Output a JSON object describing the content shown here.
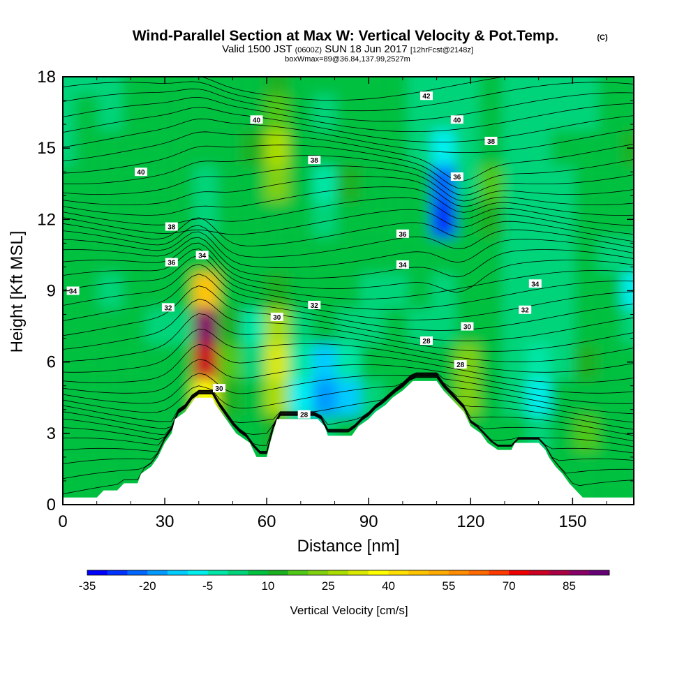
{
  "header": {
    "title": "Wind-Parallel Section at Max W: Vertical Velocity & Pot.Temp.",
    "title_mark": "(C)",
    "valid_prefix": "Valid 1500 JST",
    "valid_utc": "(0600Z)",
    "valid_date": "SUN 18 Jun 2017",
    "forecast": "[12hrFcst@2148z]",
    "boxmax": "boxWmax=89@36.84,137.99,2527m"
  },
  "chart_data": {
    "type": "heatmap",
    "xlabel": "Distance [nm]",
    "ylabel": "Height [Kft MSL]",
    "xlim": [
      0,
      168
    ],
    "ylim": [
      0,
      18
    ],
    "xticks": [
      0,
      30,
      60,
      90,
      120,
      150
    ],
    "yticks": [
      0,
      3,
      6,
      9,
      12,
      15,
      18
    ],
    "colorbar": {
      "title": "Vertical Velocity [cm/s]",
      "tick_labels": [
        "-35",
        "-20",
        "-5",
        "10",
        "25",
        "40",
        "55",
        "70",
        "85"
      ],
      "tick_values": [
        -35,
        -20,
        -5,
        10,
        25,
        40,
        55,
        70,
        85
      ],
      "range": [
        -35,
        95
      ],
      "colors": [
        "#0000ff",
        "#0033ff",
        "#0066ff",
        "#0099ff",
        "#00ccff",
        "#00eeee",
        "#00e6a6",
        "#00d47a",
        "#00c040",
        "#1ab020",
        "#50c818",
        "#80d010",
        "#aadd00",
        "#d8e800",
        "#ffff00",
        "#ffe000",
        "#ffc400",
        "#ffaa00",
        "#ff8c00",
        "#ff6a00",
        "#ff3a00",
        "#ee0000",
        "#cc0022",
        "#aa0044",
        "#880066",
        "#660077"
      ]
    },
    "terrain_kft": [
      [
        0,
        0.3
      ],
      [
        10,
        0.3
      ],
      [
        12,
        0.6
      ],
      [
        16,
        0.6
      ],
      [
        18,
        0.9
      ],
      [
        22,
        0.9
      ],
      [
        23,
        1.3
      ],
      [
        26,
        1.6
      ],
      [
        28,
        2.0
      ],
      [
        30,
        2.6
      ],
      [
        32,
        3.0
      ],
      [
        33,
        3.6
      ],
      [
        36,
        3.9
      ],
      [
        39,
        4.5
      ],
      [
        44,
        4.5
      ],
      [
        45,
        4.2
      ],
      [
        48,
        3.6
      ],
      [
        51,
        3.0
      ],
      [
        55,
        2.6
      ],
      [
        57,
        2.0
      ],
      [
        60,
        2.0
      ],
      [
        61,
        2.6
      ],
      [
        63,
        3.6
      ],
      [
        75,
        3.6
      ],
      [
        77,
        3.3
      ],
      [
        78,
        2.9
      ],
      [
        85,
        2.9
      ],
      [
        87,
        3.3
      ],
      [
        90,
        3.6
      ],
      [
        92,
        3.9
      ],
      [
        95,
        4.2
      ],
      [
        97,
        4.5
      ],
      [
        100,
        4.8
      ],
      [
        103,
        5.2
      ],
      [
        110,
        5.2
      ],
      [
        112,
        4.8
      ],
      [
        114,
        4.5
      ],
      [
        116,
        4.2
      ],
      [
        118,
        3.9
      ],
      [
        120,
        3.3
      ],
      [
        123,
        3.0
      ],
      [
        125,
        2.6
      ],
      [
        128,
        2.3
      ],
      [
        132,
        2.3
      ],
      [
        133,
        2.6
      ],
      [
        140,
        2.6
      ],
      [
        142,
        2.3
      ],
      [
        143,
        2.0
      ],
      [
        145,
        1.6
      ],
      [
        147,
        1.3
      ],
      [
        149,
        0.9
      ],
      [
        151,
        0.6
      ],
      [
        153,
        0.3
      ],
      [
        168,
        0.3
      ]
    ],
    "contour_labels": [
      {
        "text": "42",
        "x": 107,
        "y": 17.2
      },
      {
        "text": "40",
        "x": 57,
        "y": 16.2
      },
      {
        "text": "40",
        "x": 116,
        "y": 16.2
      },
      {
        "text": "38",
        "x": 126,
        "y": 15.3
      },
      {
        "text": "40",
        "x": 23,
        "y": 14.0
      },
      {
        "text": "38",
        "x": 74,
        "y": 14.5
      },
      {
        "text": "36",
        "x": 116,
        "y": 13.8
      },
      {
        "text": "38",
        "x": 32,
        "y": 11.7
      },
      {
        "text": "36",
        "x": 100,
        "y": 11.4
      },
      {
        "text": "34",
        "x": 41,
        "y": 10.5
      },
      {
        "text": "36",
        "x": 32,
        "y": 10.2
      },
      {
        "text": "34",
        "x": 100,
        "y": 10.1
      },
      {
        "text": "34",
        "x": 139,
        "y": 9.3
      },
      {
        "text": "34",
        "x": 3,
        "y": 9.0
      },
      {
        "text": "32",
        "x": 31,
        "y": 8.3
      },
      {
        "text": "32",
        "x": 74,
        "y": 8.4
      },
      {
        "text": "32",
        "x": 136,
        "y": 8.2
      },
      {
        "text": "30",
        "x": 63,
        "y": 7.9
      },
      {
        "text": "30",
        "x": 119,
        "y": 7.5
      },
      {
        "text": "28",
        "x": 107,
        "y": 6.9
      },
      {
        "text": "28",
        "x": 117,
        "y": 5.9
      },
      {
        "text": "30",
        "x": 46,
        "y": 4.9
      },
      {
        "text": "28",
        "x": 71,
        "y": 3.8
      }
    ],
    "w_field_cm_s": {
      "x": [
        0,
        7,
        14,
        21,
        28,
        35,
        42,
        49,
        56,
        63,
        70,
        77,
        84,
        91,
        98,
        105,
        112,
        119,
        126,
        133,
        140,
        147,
        154,
        161,
        168
      ],
      "y": [
        0,
        1.5,
        3,
        4.5,
        6,
        7.5,
        9,
        10.5,
        12,
        13.5,
        15,
        16.5,
        18
      ],
      "values": [
        [
          8,
          8,
          8,
          8,
          6,
          5,
          5,
          6,
          8,
          8,
          8,
          6,
          5,
          5,
          6,
          8,
          8,
          8,
          8,
          8,
          8,
          5,
          6,
          8,
          8
        ],
        [
          8,
          8,
          6,
          6,
          6,
          5,
          5,
          6,
          8,
          8,
          8,
          6,
          5,
          5,
          6,
          8,
          8,
          8,
          8,
          8,
          8,
          5,
          6,
          8,
          8
        ],
        [
          6,
          6,
          6,
          6,
          6,
          5,
          5,
          6,
          8,
          12,
          8,
          4,
          5,
          5,
          6,
          8,
          8,
          8,
          8,
          8,
          0,
          5,
          15,
          6,
          6
        ],
        [
          6,
          6,
          6,
          6,
          6,
          5,
          40,
          12,
          6,
          28,
          -10,
          -20,
          -12,
          0,
          6,
          8,
          8,
          22,
          6,
          4,
          -8,
          5,
          6,
          6,
          6
        ],
        [
          6,
          6,
          6,
          6,
          6,
          5,
          75,
          15,
          0,
          30,
          -5,
          -15,
          -5,
          5,
          6,
          8,
          6,
          20,
          6,
          4,
          -5,
          0,
          10,
          6,
          6
        ],
        [
          6,
          6,
          6,
          6,
          0,
          0,
          85,
          12,
          -2,
          25,
          0,
          6,
          4,
          4,
          6,
          4,
          4,
          6,
          6,
          4,
          0,
          4,
          6,
          6,
          2
        ],
        [
          6,
          6,
          4,
          6,
          5,
          6,
          45,
          6,
          6,
          10,
          6,
          6,
          6,
          0,
          4,
          6,
          4,
          6,
          6,
          4,
          4,
          4,
          6,
          6,
          -10
        ],
        [
          6,
          6,
          6,
          6,
          6,
          8,
          6,
          6,
          6,
          8,
          6,
          6,
          6,
          6,
          6,
          6,
          6,
          6,
          6,
          4,
          2,
          4,
          6,
          4,
          4
        ],
        [
          6,
          6,
          6,
          6,
          6,
          6,
          0,
          6,
          6,
          8,
          6,
          0,
          6,
          6,
          6,
          6,
          -30,
          6,
          10,
          4,
          2,
          4,
          6,
          6,
          6
        ],
        [
          6,
          6,
          6,
          6,
          6,
          8,
          2,
          6,
          8,
          20,
          6,
          -5,
          12,
          6,
          6,
          6,
          -25,
          4,
          15,
          4,
          2,
          4,
          6,
          6,
          6
        ],
        [
          4,
          8,
          6,
          6,
          8,
          8,
          8,
          8,
          10,
          25,
          6,
          6,
          6,
          6,
          6,
          4,
          -10,
          4,
          6,
          4,
          4,
          6,
          6,
          6,
          10
        ],
        [
          2,
          6,
          2,
          6,
          6,
          6,
          8,
          8,
          8,
          15,
          6,
          4,
          6,
          6,
          6,
          4,
          0,
          4,
          6,
          4,
          4,
          4,
          4,
          6,
          8
        ],
        [
          2,
          2,
          4,
          6,
          6,
          8,
          8,
          8,
          8,
          10,
          6,
          6,
          6,
          6,
          6,
          4,
          2,
          4,
          6,
          4,
          4,
          4,
          4,
          6,
          8
        ]
      ]
    },
    "theta_contours_C": [
      26,
      28,
      30,
      32,
      34,
      36,
      38,
      40,
      42
    ]
  }
}
